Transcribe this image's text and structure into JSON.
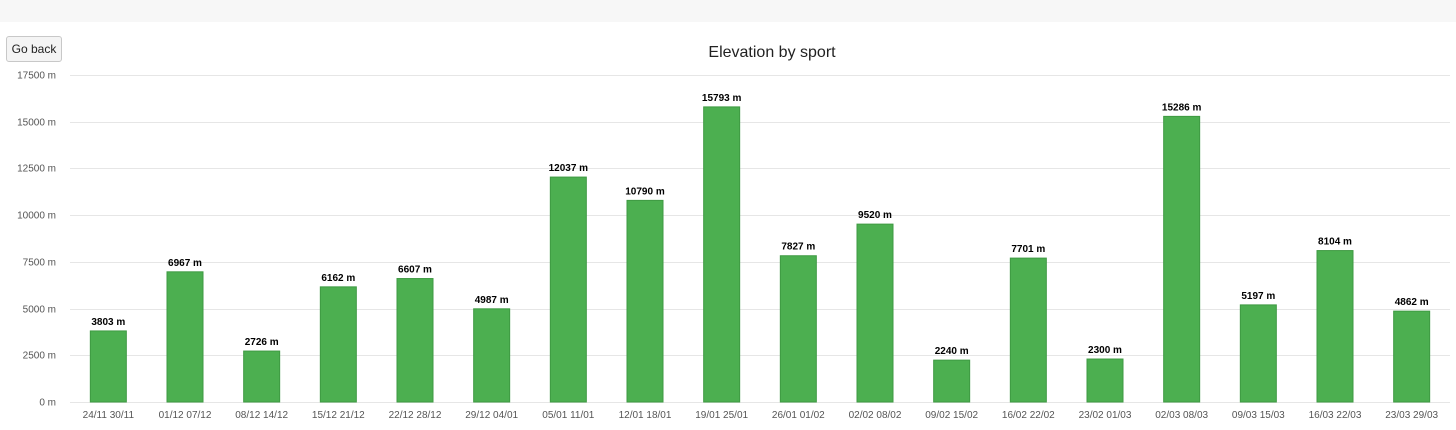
{
  "toolbar": {
    "back_label": "Go back"
  },
  "colors": {
    "bar": "#4caf50",
    "bar_border": "#3e9a42",
    "grid": "#e6e6e6"
  },
  "chart_data": {
    "type": "bar",
    "title": "Elevation by sport",
    "unit": "m",
    "ylim": [
      0,
      17500
    ],
    "yticks": [
      0,
      2500,
      5000,
      7500,
      10000,
      12500,
      15000,
      17500
    ],
    "ytick_labels": [
      "0 m",
      "2500 m",
      "5000 m",
      "7500 m",
      "10000 m",
      "12500 m",
      "15000 m",
      "17500 m"
    ],
    "categories": [
      "24/11 30/11",
      "01/12 07/12",
      "08/12 14/12",
      "15/12 21/12",
      "22/12 28/12",
      "29/12 04/01",
      "05/01 11/01",
      "12/01 18/01",
      "19/01 25/01",
      "26/01 01/02",
      "02/02 08/02",
      "09/02 15/02",
      "16/02 22/02",
      "23/02 01/03",
      "02/03 08/03",
      "09/03 15/03",
      "16/03 22/03",
      "23/03 29/03"
    ],
    "values": [
      3803,
      6967,
      2726,
      6162,
      6607,
      4987,
      12037,
      10790,
      15793,
      7827,
      9520,
      2240,
      7701,
      2300,
      15286,
      5197,
      8104,
      4862
    ],
    "data_labels": [
      "3803 m",
      "6967 m",
      "2726 m",
      "6162 m",
      "6607 m",
      "4987 m",
      "12037 m",
      "10790 m",
      "15793 m",
      "7827 m",
      "9520 m",
      "2240 m",
      "7701 m",
      "2300 m",
      "15286 m",
      "5197 m",
      "8104 m",
      "4862 m"
    ],
    "grid": true
  }
}
